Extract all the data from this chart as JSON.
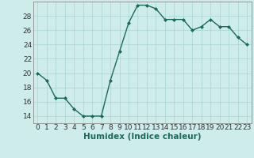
{
  "x": [
    0,
    1,
    2,
    3,
    4,
    5,
    6,
    7,
    8,
    9,
    10,
    11,
    12,
    13,
    14,
    15,
    16,
    17,
    18,
    19,
    20,
    21,
    22,
    23
  ],
  "y": [
    20,
    19,
    16.5,
    16.5,
    15,
    14,
    14,
    14,
    19,
    23,
    27,
    29.5,
    29.5,
    29,
    27.5,
    27.5,
    27.5,
    26,
    26.5,
    27.5,
    26.5,
    26.5,
    25,
    24
  ],
  "line_color": "#1a6b5a",
  "marker": "D",
  "marker_size": 2.0,
  "background_color": "#ceecea",
  "grid_color": "#aed8d5",
  "xlabel": "Humidex (Indice chaleur)",
  "ylim": [
    13,
    30
  ],
  "xlim": [
    -0.5,
    23.5
  ],
  "yticks": [
    14,
    16,
    18,
    20,
    22,
    24,
    26,
    28
  ],
  "xticks": [
    0,
    1,
    2,
    3,
    4,
    5,
    6,
    7,
    8,
    9,
    10,
    11,
    12,
    13,
    14,
    15,
    16,
    17,
    18,
    19,
    20,
    21,
    22,
    23
  ],
  "tick_label_fontsize": 6.5,
  "xlabel_fontsize": 7.5,
  "line_width": 1.0,
  "spine_color": "#888888"
}
